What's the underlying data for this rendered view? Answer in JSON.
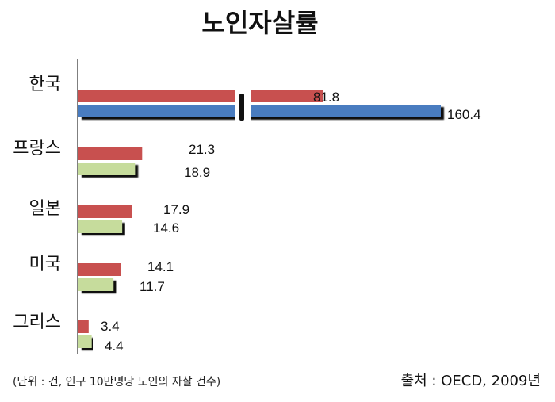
{
  "chart_data": {
    "type": "bar",
    "orientation": "horizontal",
    "title": "노인자살률",
    "categories": [
      "한국",
      "프랑스",
      "일본",
      "미국",
      "그리스"
    ],
    "series": [
      {
        "values": [
          81.8,
          21.3,
          17.9,
          14.1,
          3.4
        ],
        "color": "#c8504f"
      },
      {
        "values": [
          160.4,
          18.9,
          14.6,
          11.7,
          4.4
        ]
      }
    ],
    "value_labels": [
      [
        "81.8",
        "21.3",
        "17.9",
        "14.1",
        "3.4"
      ],
      [
        "160.4",
        "18.9",
        "14.6",
        "11.7",
        "4.4"
      ]
    ],
    "second_series_colors": [
      "#4a7cc0",
      "#c6dc9c",
      "#c6dc9c",
      "#c6dc9c",
      "#c6dc9c"
    ],
    "axis_break": true,
    "grid": false,
    "legend": "none"
  },
  "footer": {
    "unit_note": "(단위 : 건, 인구 10만명당 노인의 자살 건수)",
    "source": "출처 : OECD, 2009년"
  }
}
